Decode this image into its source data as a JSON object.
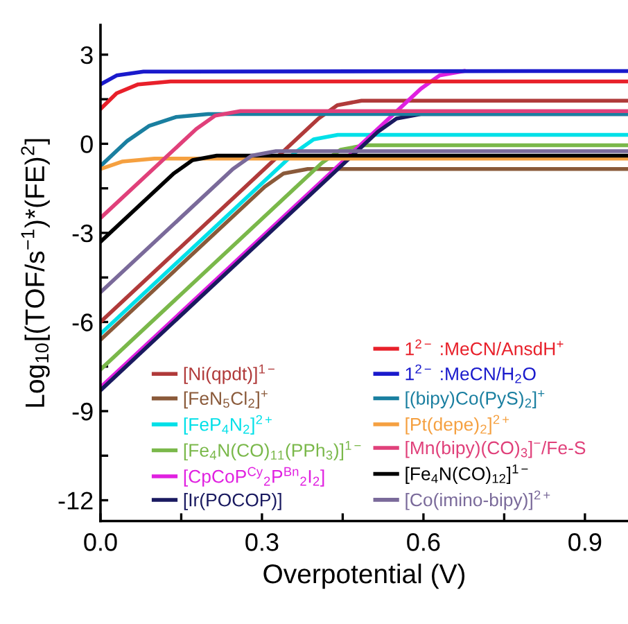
{
  "chart_data": {
    "type": "line",
    "xlabel": "Overpotential (V)",
    "ylabel": "Log$_{10}$[(TOF/s$^{−1}$)*(FE)$^{2}$]",
    "xlim": [
      0,
      0.98
    ],
    "ylim": [
      -12.7,
      4
    ],
    "xticks": [
      {
        "value": 0,
        "label": "0.0"
      },
      {
        "value": 0.15,
        "label": null
      },
      {
        "value": 0.3,
        "label": "0.3"
      },
      {
        "value": 0.45,
        "label": null
      },
      {
        "value": 0.6,
        "label": "0.6"
      },
      {
        "value": 0.75,
        "label": null
      },
      {
        "value": 0.9,
        "label": "0.9"
      }
    ],
    "yticks": [
      3,
      {
        "value": 1.5,
        "label": null
      },
      0,
      {
        "value": -1.5,
        "label": null
      },
      -3,
      {
        "value": -4.5,
        "label": null
      },
      -6,
      {
        "value": -7.5,
        "label": null
      },
      -9,
      {
        "value": -10.5,
        "label": null
      },
      -12
    ],
    "grid": false,
    "legend": "bottom",
    "marker": "none",
    "line_style": "solid",
    "series": [
      {
        "name": "[Ni(qpdt)]$^{1−}$",
        "color": "#b03a3a",
        "x": [
          0,
          0.405,
          0.44,
          0.485,
          0.98
        ],
        "values": [
          -6.0,
          0.85,
          1.3,
          1.45,
          1.45
        ]
      },
      {
        "name": "[FeN$_{5}$Cl$_{2}$]$^{+}$",
        "color": "#8a5a3a",
        "x": [
          0,
          0.305,
          0.34,
          0.385,
          0.98
        ],
        "values": [
          -6.6,
          -1.45,
          -1.0,
          -0.85,
          -0.85
        ]
      },
      {
        "name": "[FeP$_{4}$N$_{2}$]$^{2+}$",
        "color": "#00e0e8",
        "x": [
          0,
          0.361,
          0.396,
          0.441,
          0.98
        ],
        "values": [
          -6.4,
          -0.3,
          0.15,
          0.3,
          0.3
        ]
      },
      {
        "name": "[Fe$_{4}$N(CO)$_{11}$(PPh$_{3}$)]$^{1−}$",
        "color": "#7ab84a",
        "x": [
          0,
          0.411,
          0.446,
          0.491,
          0.98
        ],
        "values": [
          -7.6,
          -0.65,
          -0.2,
          -0.05,
          -0.05
        ]
      },
      {
        "name": "[CpCoP$^{Cy}$$_{2}$P$^{Bn}$$_{2}$I$_{2}$]",
        "color": "#e020e0",
        "x": [
          0,
          0.595,
          0.63,
          0.675
        ],
        "values": [
          -8.2,
          1.85,
          2.3,
          2.45
        ]
      },
      {
        "name": "[Ir(POCOP)]",
        "color": "#1a1a60",
        "x": [
          0,
          0.515,
          0.55,
          0.595,
          0.98
        ],
        "values": [
          -8.3,
          0.4,
          0.85,
          1.0,
          1.0
        ]
      },
      {
        "name": "1$^{2−}$ :MeCN/AnsdH$^{+}$",
        "color": "#e8202a",
        "x": [
          0,
          0.03,
          0.07,
          0.13,
          0.98
        ],
        "values": [
          1.17,
          1.7,
          2.0,
          2.1,
          2.1
        ]
      },
      {
        "name": "1$^{2−}$ :MeCN/H$_{2}$O",
        "color": "#1a1acc",
        "x": [
          0,
          0.03,
          0.08,
          0.98
        ],
        "values": [
          2.0,
          2.3,
          2.43,
          2.45
        ]
      },
      {
        "name": "[(bipy)Co(PyS)$_{2}$]$^{+}$",
        "color": "#1a7fa0",
        "x": [
          0,
          0.05,
          0.09,
          0.14,
          0.2,
          0.98
        ],
        "values": [
          -0.75,
          0.1,
          0.6,
          0.9,
          1.0,
          1.0
        ]
      },
      {
        "name": "[Pt(depe)$_{2}$]$^{2+}$",
        "color": "#f5a040",
        "x": [
          0,
          0.04,
          0.1,
          0.98
        ],
        "values": [
          -0.85,
          -0.6,
          -0.5,
          -0.5
        ]
      },
      {
        "name": "[Mn(bipy)(CO)$_{3}$]$^{−}$/Fe-S",
        "color": "#e0407a",
        "x": [
          0,
          0.178,
          0.213,
          0.26,
          0.98
        ],
        "values": [
          -2.5,
          0.5,
          0.95,
          1.1,
          1.1
        ]
      },
      {
        "name": "[Fe$_{4}$N(CO)$_{12}$]$^{1−}$",
        "color": "#000000",
        "x": [
          0,
          0.136,
          0.171,
          0.216,
          0.98
        ],
        "values": [
          -3.3,
          -1.0,
          -0.55,
          -0.4,
          -0.4
        ]
      },
      {
        "name": "[Co(imino-bipy)]$^{2+}$",
        "color": "#7a6a9a",
        "x": [
          0,
          0.246,
          0.281,
          0.326,
          0.98
        ],
        "values": [
          -5.0,
          -0.85,
          -0.4,
          -0.25,
          -0.25
        ]
      }
    ]
  }
}
